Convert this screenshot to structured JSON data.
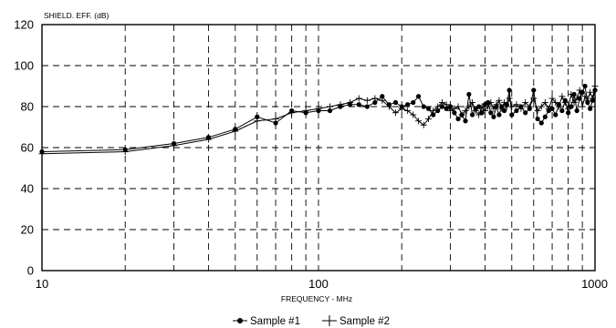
{
  "chart_data": {
    "type": "line",
    "title": "",
    "ylabel": "SHIELD. EFF. (dB)",
    "xlabel": "FREQUENCY - MHz",
    "xscale": "log",
    "xlim": [
      10,
      1000
    ],
    "ylim": [
      0,
      120
    ],
    "xticks": [
      {
        "value": 10,
        "label": "10"
      },
      {
        "value": 100,
        "label": "100"
      },
      {
        "value": 1000,
        "label": "1000"
      }
    ],
    "yticks": [
      {
        "value": 0,
        "label": "0"
      },
      {
        "value": 20,
        "label": "20"
      },
      {
        "value": 40,
        "label": "40"
      },
      {
        "value": 60,
        "label": "60"
      },
      {
        "value": 80,
        "label": "80"
      },
      {
        "value": 100,
        "label": "100"
      },
      {
        "value": 120,
        "label": "120"
      }
    ],
    "grid": "dashed",
    "legend_position": "bottom",
    "series": [
      {
        "name": "Sample #1",
        "marker": "dot",
        "x": [
          10,
          20,
          30,
          40,
          50,
          60,
          70,
          80,
          90,
          100,
          110,
          120,
          130,
          140,
          150,
          160,
          170,
          180,
          190,
          200,
          210,
          220,
          230,
          240,
          250,
          260,
          270,
          280,
          290,
          300,
          310,
          320,
          330,
          340,
          350,
          360,
          370,
          380,
          390,
          400,
          410,
          420,
          430,
          440,
          450,
          460,
          470,
          480,
          490,
          500,
          520,
          540,
          560,
          580,
          600,
          620,
          640,
          660,
          680,
          700,
          720,
          740,
          760,
          780,
          800,
          820,
          840,
          860,
          880,
          900,
          920,
          940,
          960,
          980,
          1000
        ],
        "y": [
          58,
          59,
          62,
          65,
          69,
          75,
          72,
          78,
          77,
          78,
          78,
          80,
          81,
          81,
          80,
          82,
          85,
          81,
          82,
          80,
          81,
          82,
          85,
          80,
          79,
          76,
          78,
          80,
          79,
          80,
          77,
          74,
          76,
          73,
          86,
          76,
          79,
          80,
          77,
          81,
          82,
          77,
          75,
          80,
          76,
          80,
          78,
          81,
          88,
          76,
          78,
          80,
          77,
          79,
          88,
          74,
          72,
          75,
          78,
          79,
          76,
          81,
          78,
          83,
          77,
          80,
          86,
          78,
          84,
          87,
          90,
          82,
          79,
          83,
          88
        ]
      },
      {
        "name": "Sample #2",
        "marker": "plus",
        "x": [
          10,
          20,
          30,
          40,
          50,
          60,
          70,
          80,
          90,
          100,
          110,
          120,
          130,
          140,
          150,
          160,
          170,
          180,
          190,
          200,
          210,
          220,
          230,
          240,
          250,
          260,
          270,
          280,
          290,
          300,
          310,
          320,
          330,
          340,
          350,
          360,
          370,
          380,
          390,
          400,
          410,
          420,
          430,
          440,
          450,
          460,
          470,
          480,
          490,
          500,
          520,
          540,
          560,
          580,
          600,
          620,
          640,
          660,
          680,
          700,
          720,
          740,
          760,
          780,
          800,
          820,
          840,
          860,
          880,
          900,
          920,
          940,
          960,
          980,
          1000
        ],
        "y": [
          57,
          58,
          61,
          64,
          68,
          73,
          74,
          77,
          78,
          79,
          80,
          81,
          82,
          84,
          83,
          84,
          83,
          80,
          77,
          79,
          78,
          76,
          73,
          71,
          74,
          78,
          80,
          82,
          81,
          78,
          79,
          80,
          76,
          78,
          80,
          82,
          78,
          76,
          80,
          78,
          80,
          82,
          79,
          81,
          83,
          79,
          82,
          80,
          84,
          80,
          81,
          79,
          82,
          80,
          84,
          78,
          80,
          82,
          79,
          84,
          82,
          80,
          85,
          82,
          79,
          86,
          82,
          84,
          88,
          80,
          85,
          83,
          87,
          84,
          90
        ]
      }
    ]
  }
}
